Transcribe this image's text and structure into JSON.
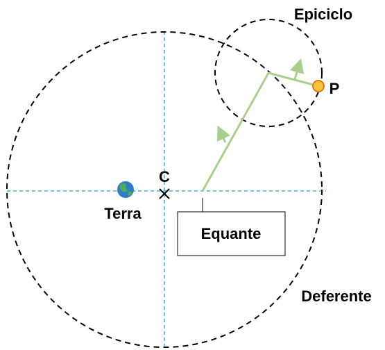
{
  "labels": {
    "epicycle": "Epiciclo",
    "planet": "P",
    "center": "C",
    "earth": "Terra",
    "equant": "Equante",
    "deferent": "Deferente"
  }
}
